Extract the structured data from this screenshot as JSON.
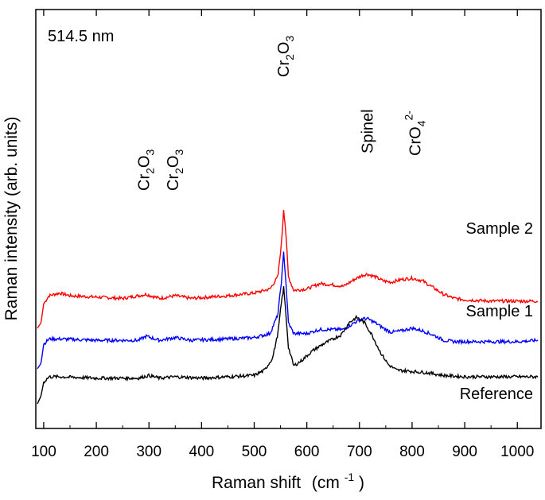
{
  "chart_data": {
    "type": "line",
    "xlabel": "Raman shift",
    "xlabel_unit_base": "(cm",
    "xlabel_unit_sup": "-1",
    "xlabel_unit_close": ")",
    "ylabel": "Raman intensity (arb. units)",
    "wavelength_label": "514.5 nm",
    "xlim": [
      85,
      1045
    ],
    "x_ticks": [
      100,
      200,
      300,
      400,
      500,
      600,
      700,
      800,
      900,
      1000
    ],
    "grid": false,
    "legend": "none (series labeled directly at right)",
    "y_axis_ticks_labeled": false,
    "peak_annotations": [
      {
        "x": 290,
        "base": "Cr",
        "sub1": "2",
        "mid": "O",
        "sub2": "3",
        "sup": ""
      },
      {
        "x": 345,
        "base": "Cr",
        "sub1": "2",
        "mid": "O",
        "sub2": "3",
        "sup": ""
      },
      {
        "x": 555,
        "base": "Cr",
        "sub1": "2",
        "mid": "O",
        "sub2": "3",
        "sup": ""
      },
      {
        "x": 715,
        "base": "Spinel",
        "sub1": "",
        "mid": "",
        "sub2": "",
        "sup": ""
      },
      {
        "x": 805,
        "base": "CrO",
        "sub1": "",
        "mid": "",
        "sub2": "4",
        "sup": "2-"
      }
    ],
    "series": [
      {
        "name": "Sample 2",
        "color": "#ff0000",
        "offset": 2.8,
        "points": [
          [
            88,
            0.0
          ],
          [
            95,
            0.2
          ],
          [
            100,
            0.9
          ],
          [
            110,
            1.2
          ],
          [
            130,
            1.3
          ],
          [
            150,
            1.2
          ],
          [
            200,
            1.15
          ],
          [
            250,
            1.1
          ],
          [
            295,
            1.25
          ],
          [
            320,
            1.1
          ],
          [
            350,
            1.2
          ],
          [
            380,
            1.1
          ],
          [
            450,
            1.2
          ],
          [
            500,
            1.3
          ],
          [
            530,
            1.45
          ],
          [
            545,
            1.9
          ],
          [
            552,
            3.2
          ],
          [
            556,
            4.4
          ],
          [
            560,
            3.6
          ],
          [
            565,
            1.9
          ],
          [
            575,
            1.4
          ],
          [
            600,
            1.45
          ],
          [
            625,
            1.65
          ],
          [
            650,
            1.6
          ],
          [
            670,
            1.55
          ],
          [
            690,
            1.8
          ],
          [
            705,
            1.95
          ],
          [
            715,
            2.0
          ],
          [
            730,
            1.9
          ],
          [
            745,
            1.75
          ],
          [
            760,
            1.7
          ],
          [
            780,
            1.8
          ],
          [
            800,
            1.85
          ],
          [
            820,
            1.75
          ],
          [
            840,
            1.5
          ],
          [
            860,
            1.25
          ],
          [
            880,
            1.1
          ],
          [
            900,
            1.05
          ],
          [
            950,
            1.0
          ],
          [
            1000,
            1.0
          ],
          [
            1040,
            1.0
          ]
        ]
      },
      {
        "name": "Sample 1",
        "color": "#0000ff",
        "offset": 1.3,
        "points": [
          [
            88,
            0.0
          ],
          [
            95,
            0.2
          ],
          [
            100,
            0.9
          ],
          [
            110,
            1.1
          ],
          [
            130,
            1.1
          ],
          [
            200,
            1.05
          ],
          [
            280,
            1.05
          ],
          [
            295,
            1.2
          ],
          [
            320,
            1.05
          ],
          [
            350,
            1.15
          ],
          [
            380,
            1.05
          ],
          [
            450,
            1.1
          ],
          [
            500,
            1.15
          ],
          [
            530,
            1.3
          ],
          [
            545,
            2.0
          ],
          [
            552,
            3.3
          ],
          [
            556,
            4.3
          ],
          [
            560,
            3.3
          ],
          [
            565,
            1.7
          ],
          [
            575,
            1.3
          ],
          [
            600,
            1.3
          ],
          [
            625,
            1.45
          ],
          [
            650,
            1.45
          ],
          [
            670,
            1.45
          ],
          [
            690,
            1.7
          ],
          [
            705,
            1.85
          ],
          [
            715,
            1.85
          ],
          [
            730,
            1.7
          ],
          [
            745,
            1.5
          ],
          [
            760,
            1.35
          ],
          [
            780,
            1.4
          ],
          [
            800,
            1.5
          ],
          [
            820,
            1.4
          ],
          [
            840,
            1.25
          ],
          [
            860,
            1.05
          ],
          [
            880,
            1.0
          ],
          [
            900,
            1.0
          ],
          [
            1000,
            1.0
          ],
          [
            1040,
            1.05
          ]
        ]
      },
      {
        "name": "Reference",
        "color": "#000000",
        "offset": 0.0,
        "points": [
          [
            88,
            0.0
          ],
          [
            95,
            0.3
          ],
          [
            100,
            0.8
          ],
          [
            110,
            1.0
          ],
          [
            130,
            1.0
          ],
          [
            200,
            0.95
          ],
          [
            280,
            0.95
          ],
          [
            300,
            1.05
          ],
          [
            320,
            0.95
          ],
          [
            350,
            1.0
          ],
          [
            400,
            0.95
          ],
          [
            450,
            1.0
          ],
          [
            500,
            1.05
          ],
          [
            520,
            1.25
          ],
          [
            535,
            1.7
          ],
          [
            545,
            2.6
          ],
          [
            552,
            3.8
          ],
          [
            556,
            4.3
          ],
          [
            560,
            3.4
          ],
          [
            565,
            2.1
          ],
          [
            575,
            1.4
          ],
          [
            590,
            1.6
          ],
          [
            610,
            1.95
          ],
          [
            630,
            2.2
          ],
          [
            650,
            2.4
          ],
          [
            665,
            2.55
          ],
          [
            680,
            3.0
          ],
          [
            695,
            3.2
          ],
          [
            710,
            3.0
          ],
          [
            725,
            2.5
          ],
          [
            740,
            1.9
          ],
          [
            755,
            1.45
          ],
          [
            770,
            1.25
          ],
          [
            800,
            1.2
          ],
          [
            830,
            1.15
          ],
          [
            860,
            1.05
          ],
          [
            900,
            1.0
          ],
          [
            1000,
            1.0
          ],
          [
            1040,
            1.0
          ]
        ]
      }
    ]
  }
}
